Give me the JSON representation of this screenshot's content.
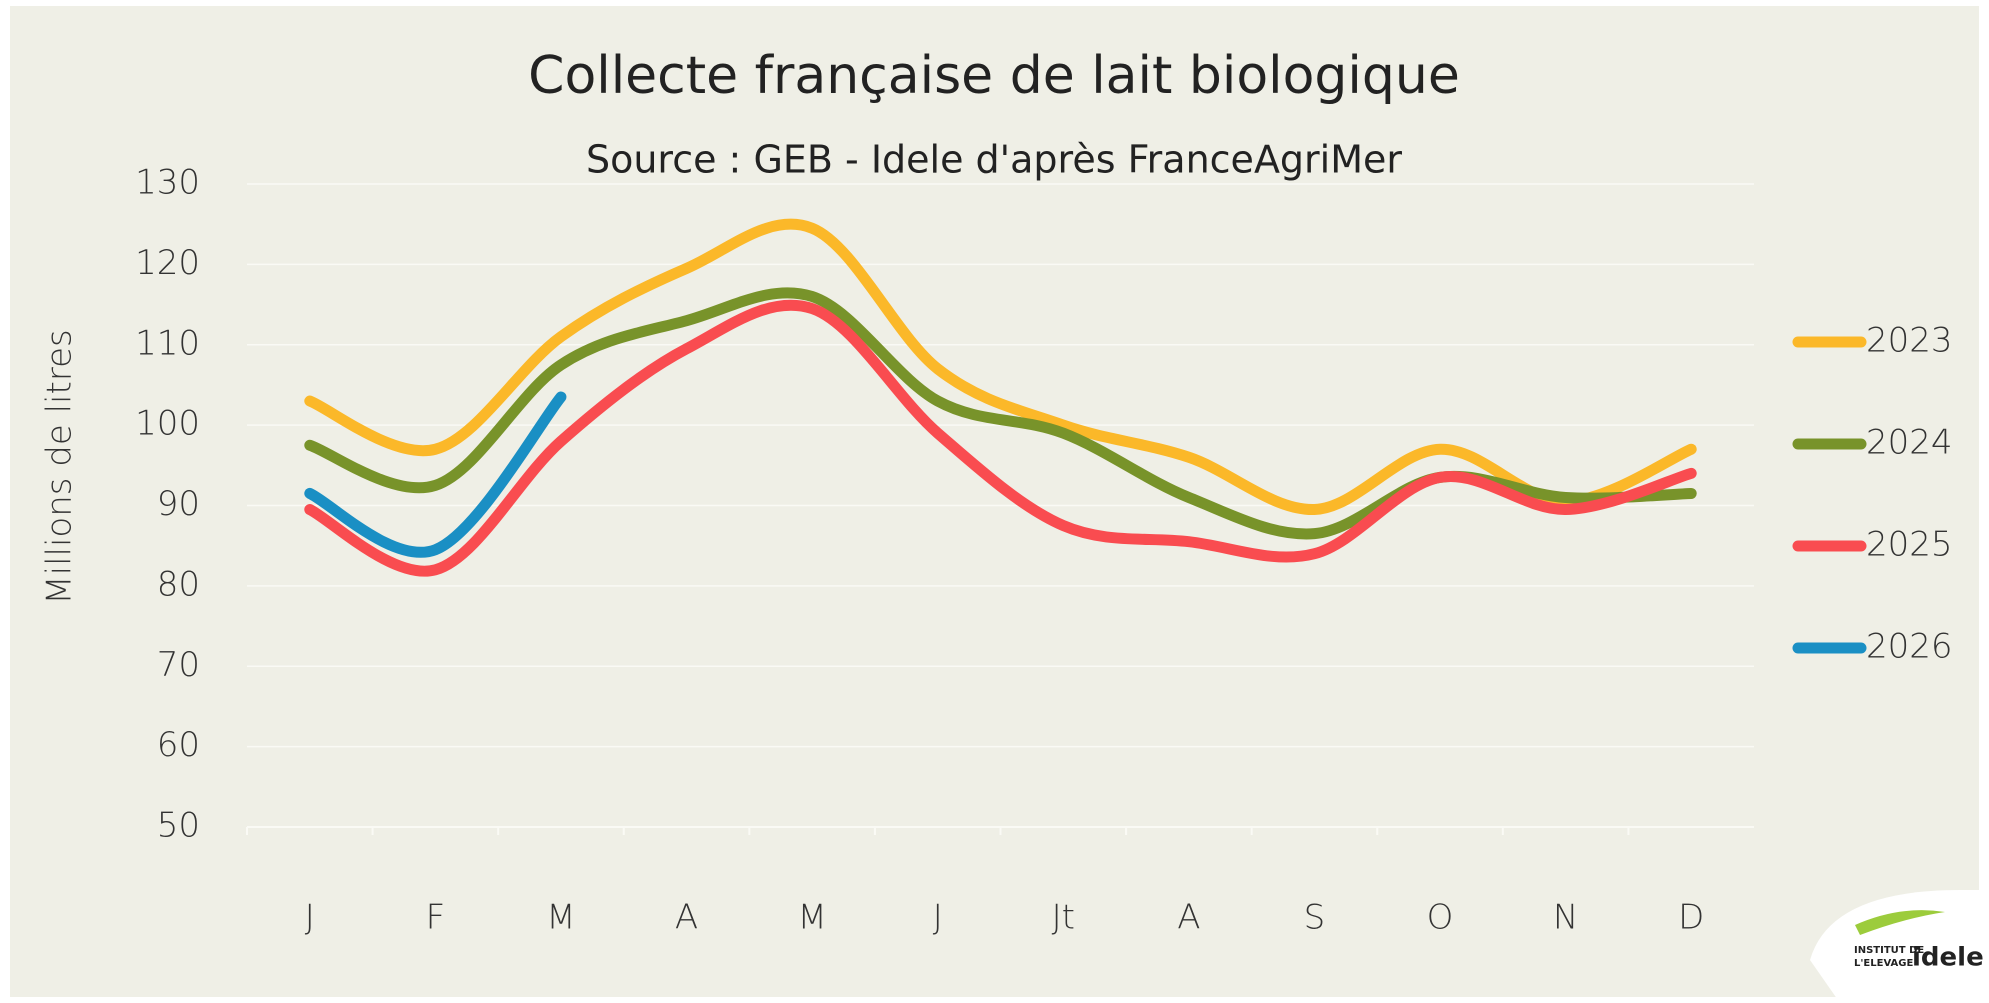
{
  "chart_data": {
    "type": "line",
    "title": "Collecte française de lait biologique",
    "subtitle": "Source : GEB - Idele d'après FranceAgriMer",
    "y_label": "Millions de litres",
    "categories": [
      "J",
      "F",
      "M",
      "A",
      "M",
      "J",
      "Jt",
      "A",
      "S",
      "O",
      "N",
      "D"
    ],
    "series": [
      {
        "name": "2023",
        "color": "#fbb829",
        "values": [
          103,
          97,
          111,
          119.5,
          124.5,
          107,
          100,
          96,
          89.5,
          97,
          90.5,
          97
        ]
      },
      {
        "name": "2024",
        "color": "#78932a",
        "values": [
          97.5,
          92.5,
          107.5,
          113,
          116,
          103,
          99,
          91,
          86.5,
          93.5,
          91,
          91.5
        ]
      },
      {
        "name": "2025",
        "color": "#f94c50",
        "values": [
          89.5,
          82,
          98,
          109.5,
          114.5,
          99,
          87.5,
          85.5,
          84,
          93.5,
          89.5,
          94
        ]
      },
      {
        "name": "2026",
        "color": "#1a8fc4",
        "values": [
          91.5,
          84.5,
          103.5,
          null,
          null,
          null,
          null,
          null,
          null,
          null,
          null,
          null
        ]
      }
    ],
    "ylim": [
      50,
      130
    ],
    "yticks": [
      50,
      60,
      70,
      80,
      90,
      100,
      110,
      120,
      130
    ],
    "grid": true,
    "legend": "right"
  },
  "logo": {
    "line1": "INSTITUT DE",
    "line2": "L'ELEVAGE",
    "brand": "idele"
  }
}
